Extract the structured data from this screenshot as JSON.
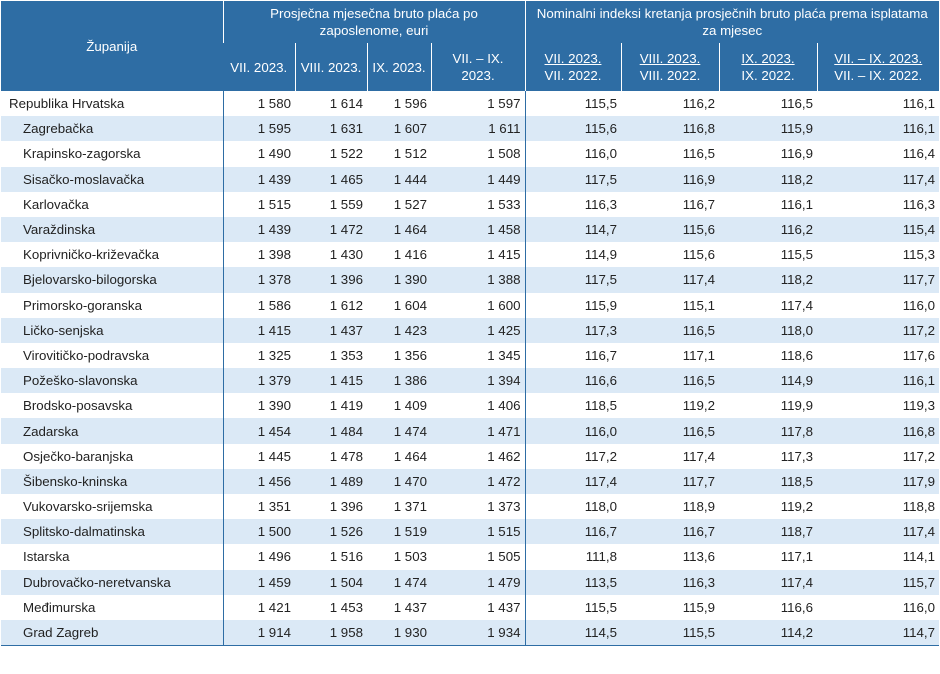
{
  "table": {
    "header": {
      "region_label": "Županija",
      "group1": "Prosječna mjesečna bruto plaća po zaposlenome, euri",
      "group2": "Nominalni indeksi kretanja prosječnih bruto plaća prema isplatama za mjesec",
      "sub1": [
        "VII. 2023.",
        "VIII. 2023.",
        "IX. 2023.",
        "VII. – IX. 2023."
      ],
      "sub2_top": [
        "VII. 2023.",
        "VIII. 2023.",
        "IX. 2023.",
        "VII. – IX. 2023."
      ],
      "sub2_bottom": [
        "VII. 2022.",
        "VIII. 2022.",
        "IX. 2022.",
        "VII. – IX. 2022."
      ]
    },
    "rows": [
      {
        "name": "Republika Hrvatska",
        "v": [
          "1 580",
          "1 614",
          "1 596",
          "1 597",
          "115,5",
          "116,2",
          "116,5",
          "116,1"
        ]
      },
      {
        "name": "Zagrebačka",
        "v": [
          "1 595",
          "1 631",
          "1 607",
          "1 611",
          "115,6",
          "116,8",
          "115,9",
          "116,1"
        ]
      },
      {
        "name": "Krapinsko-zagorska",
        "v": [
          "1 490",
          "1 522",
          "1 512",
          "1 508",
          "116,0",
          "116,5",
          "116,9",
          "116,4"
        ]
      },
      {
        "name": "Sisačko-moslavačka",
        "v": [
          "1 439",
          "1 465",
          "1 444",
          "1 449",
          "117,5",
          "116,9",
          "118,2",
          "117,4"
        ]
      },
      {
        "name": "Karlovačka",
        "v": [
          "1 515",
          "1 559",
          "1 527",
          "1 533",
          "116,3",
          "116,7",
          "116,1",
          "116,3"
        ]
      },
      {
        "name": "Varaždinska",
        "v": [
          "1 439",
          "1 472",
          "1 464",
          "1 458",
          "114,7",
          "115,6",
          "116,2",
          "115,4"
        ]
      },
      {
        "name": "Koprivničko-križevačka",
        "v": [
          "1 398",
          "1 430",
          "1 416",
          "1 415",
          "114,9",
          "115,6",
          "115,5",
          "115,3"
        ]
      },
      {
        "name": "Bjelovarsko-bilogorska",
        "v": [
          "1 378",
          "1 396",
          "1 390",
          "1 388",
          "117,5",
          "117,4",
          "118,2",
          "117,7"
        ]
      },
      {
        "name": "Primorsko-goranska",
        "v": [
          "1 586",
          "1 612",
          "1 604",
          "1 600",
          "115,9",
          "115,1",
          "117,4",
          "116,0"
        ]
      },
      {
        "name": "Ličko-senjska",
        "v": [
          "1 415",
          "1 437",
          "1 423",
          "1 425",
          "117,3",
          "116,5",
          "118,0",
          "117,2"
        ]
      },
      {
        "name": "Virovitičko-podravska",
        "v": [
          "1 325",
          "1 353",
          "1 356",
          "1 345",
          "116,7",
          "117,1",
          "118,6",
          "117,6"
        ]
      },
      {
        "name": "Požeško-slavonska",
        "v": [
          "1 379",
          "1 415",
          "1 386",
          "1 394",
          "116,6",
          "116,5",
          "114,9",
          "116,1"
        ]
      },
      {
        "name": "Brodsko-posavska",
        "v": [
          "1 390",
          "1 419",
          "1 409",
          "1 406",
          "118,5",
          "119,2",
          "119,9",
          "119,3"
        ]
      },
      {
        "name": "Zadarska",
        "v": [
          "1 454",
          "1 484",
          "1 474",
          "1 471",
          "116,0",
          "116,5",
          "117,8",
          "116,8"
        ]
      },
      {
        "name": "Osječko-baranjska",
        "v": [
          "1 445",
          "1 478",
          "1 464",
          "1 462",
          "117,2",
          "117,4",
          "117,3",
          "117,2"
        ]
      },
      {
        "name": "Šibensko-kninska",
        "v": [
          "1 456",
          "1 489",
          "1 470",
          "1 472",
          "117,4",
          "117,7",
          "118,5",
          "117,9"
        ]
      },
      {
        "name": "Vukovarsko-srijemska",
        "v": [
          "1 351",
          "1 396",
          "1 371",
          "1 373",
          "118,0",
          "118,9",
          "119,2",
          "118,8"
        ]
      },
      {
        "name": "Splitsko-dalmatinska",
        "v": [
          "1 500",
          "1 526",
          "1 519",
          "1 515",
          "116,7",
          "116,7",
          "118,7",
          "117,4"
        ]
      },
      {
        "name": "Istarska",
        "v": [
          "1 496",
          "1 516",
          "1 503",
          "1 505",
          "111,8",
          "113,6",
          "117,1",
          "114,1"
        ]
      },
      {
        "name": "Dubrovačko-neretvanska",
        "v": [
          "1 459",
          "1 504",
          "1 474",
          "1 479",
          "113,5",
          "116,3",
          "117,4",
          "115,7"
        ]
      },
      {
        "name": "Međimurska",
        "v": [
          "1 421",
          "1 453",
          "1 437",
          "1 437",
          "115,5",
          "115,9",
          "116,6",
          "116,0"
        ]
      },
      {
        "name": "Grad Zagreb",
        "v": [
          "1 914",
          "1 958",
          "1 930",
          "1 934",
          "114,5",
          "115,5",
          "114,2",
          "114,7"
        ]
      }
    ]
  }
}
